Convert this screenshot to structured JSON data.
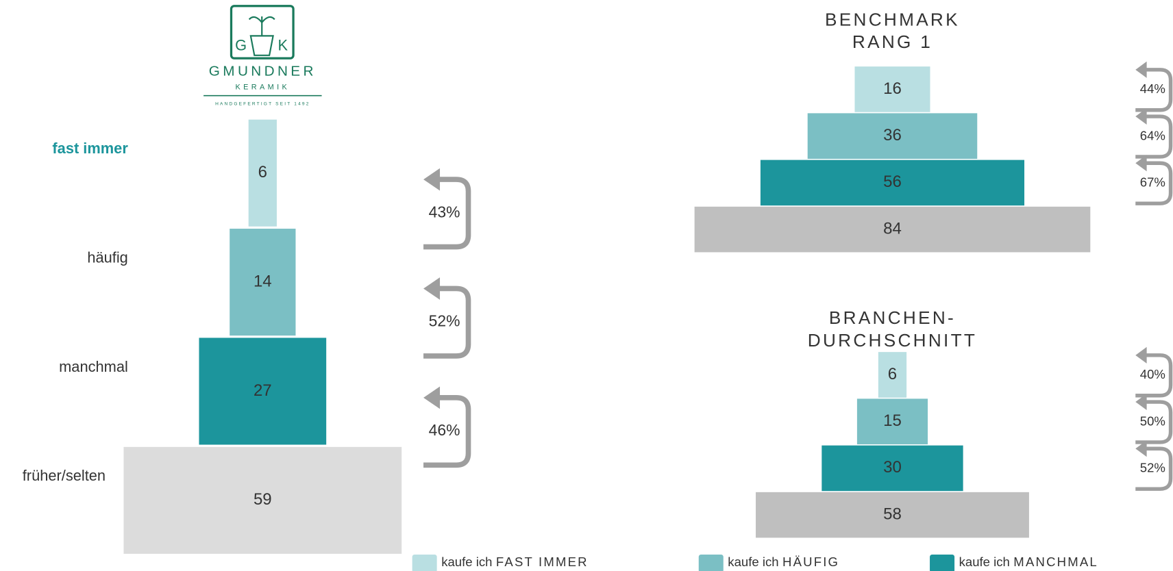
{
  "logo": {
    "monogram": [
      "G",
      "K"
    ],
    "name": "GMUNDNER",
    "sub": "KERAMIK",
    "tagline": "HANDGEFERTIGT SEIT 1492"
  },
  "chart_data": [
    {
      "type": "funnel",
      "categories": [
        "fast immer",
        "häufig",
        "manchmal",
        "früher/selten"
      ],
      "values": [
        6,
        14,
        27,
        59
      ],
      "colors": [
        "#b9dfe2",
        "#7bbfc4",
        "#1c959c",
        "#dcdcdc"
      ],
      "conversions": [
        43,
        52,
        46
      ],
      "conversion_labels": [
        "43%",
        "52%",
        "46%"
      ]
    },
    {
      "type": "funnel",
      "title": [
        "BENCHMARK",
        "RANG 1"
      ],
      "values": [
        16,
        36,
        56,
        84
      ],
      "colors": [
        "#b9dfe2",
        "#7bbfc4",
        "#1c959c",
        "#bfbfbf"
      ],
      "conversions": [
        44,
        64,
        67
      ],
      "conversion_labels": [
        "44%",
        "64%",
        "67%"
      ]
    },
    {
      "type": "funnel",
      "title": [
        "BRANCHEN-",
        "DURCHSCHNITT"
      ],
      "values": [
        6,
        15,
        30,
        58
      ],
      "colors": [
        "#b9dfe2",
        "#7bbfc4",
        "#1c959c",
        "#bfbfbf"
      ],
      "conversions": [
        40,
        50,
        52
      ],
      "conversion_labels": [
        "40%",
        "50%",
        "52%"
      ]
    }
  ],
  "legend": [
    {
      "prefix": "kaufe ich",
      "name": "FAST IMMER",
      "color": "#b9dfe2"
    },
    {
      "prefix": "kaufe ich",
      "name": "HÄUFIG",
      "color": "#7bbfc4"
    },
    {
      "prefix": "kaufe ich",
      "name": "MANCHMAL",
      "color": "#1c959c"
    }
  ]
}
